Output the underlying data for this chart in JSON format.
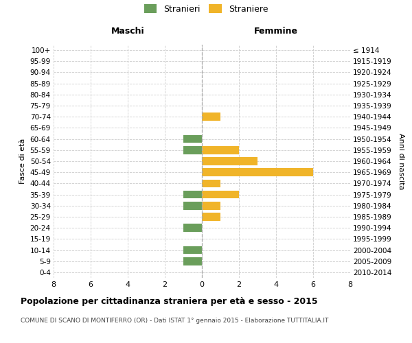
{
  "age_groups": [
    "0-4",
    "5-9",
    "10-14",
    "15-19",
    "20-24",
    "25-29",
    "30-34",
    "35-39",
    "40-44",
    "45-49",
    "50-54",
    "55-59",
    "60-64",
    "65-69",
    "70-74",
    "75-79",
    "80-84",
    "85-89",
    "90-94",
    "95-99",
    "100+"
  ],
  "birth_years": [
    "2010-2014",
    "2005-2009",
    "2000-2004",
    "1995-1999",
    "1990-1994",
    "1985-1989",
    "1980-1984",
    "1975-1979",
    "1970-1974",
    "1965-1969",
    "1960-1964",
    "1955-1959",
    "1950-1954",
    "1945-1949",
    "1940-1944",
    "1935-1939",
    "1930-1934",
    "1925-1929",
    "1920-1924",
    "1915-1919",
    "≤ 1914"
  ],
  "males": [
    0,
    1,
    1,
    0,
    1,
    0,
    1,
    1,
    0,
    0,
    0,
    1,
    1,
    0,
    0,
    0,
    0,
    0,
    0,
    0,
    0
  ],
  "females": [
    0,
    0,
    0,
    0,
    0,
    1,
    1,
    2,
    1,
    6,
    3,
    2,
    0,
    0,
    1,
    0,
    0,
    0,
    0,
    0,
    0
  ],
  "male_color": "#6a9e5b",
  "female_color": "#f0b429",
  "title": "Popolazione per cittadinanza straniera per età e sesso - 2015",
  "subtitle": "COMUNE DI SCANO DI MONTIFERRO (OR) - Dati ISTAT 1° gennaio 2015 - Elaborazione TUTTITALIA.IT",
  "xlabel_left": "Maschi",
  "xlabel_right": "Femmine",
  "ylabel_left": "Fasce di età",
  "ylabel_right": "Anni di nascita",
  "legend_male": "Stranieri",
  "legend_female": "Straniere",
  "xlim": 8,
  "xticks": [
    -8,
    -6,
    -4,
    -2,
    0,
    2,
    4,
    6,
    8
  ],
  "background_color": "#ffffff",
  "grid_color": "#cccccc"
}
